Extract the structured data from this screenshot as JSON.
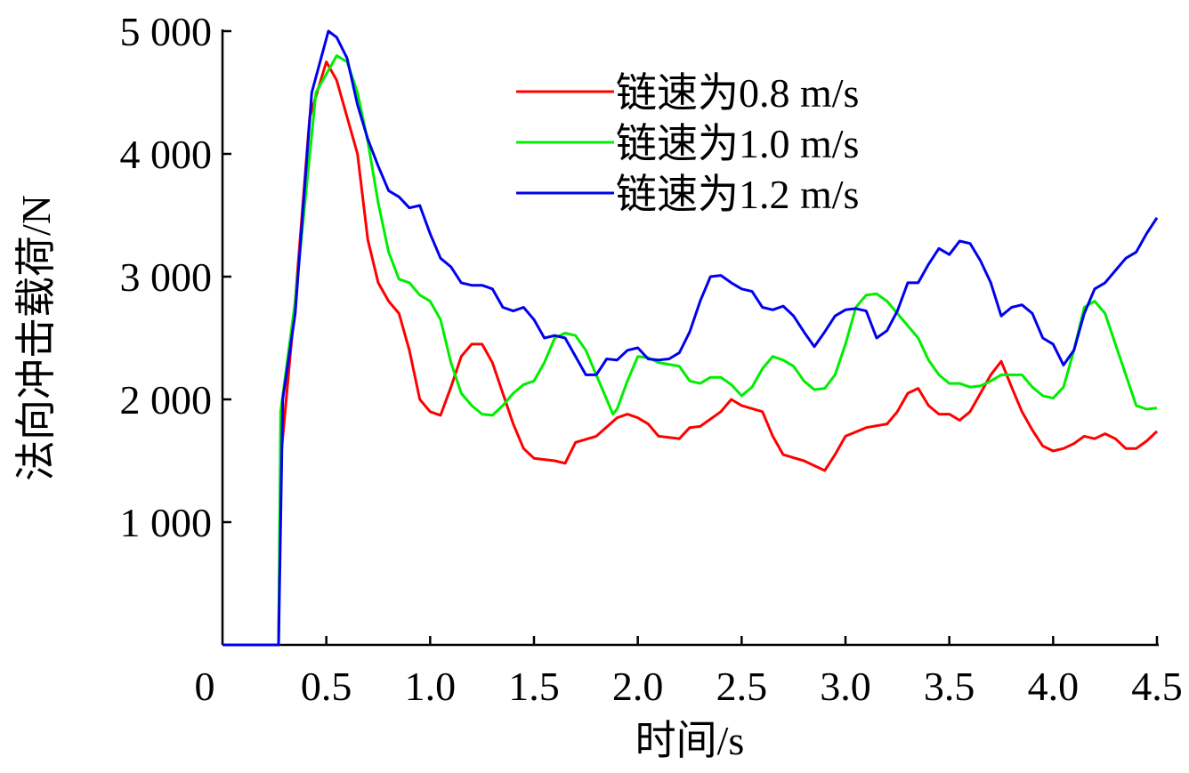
{
  "chart_data": {
    "type": "line",
    "title": "",
    "xlabel": "时间/s",
    "ylabel": "法向冲击载荷/N",
    "xlim": [
      0,
      4.5
    ],
    "ylim": [
      0,
      5000
    ],
    "x_ticks": [
      0,
      0.5,
      1.0,
      1.5,
      2.0,
      2.5,
      3.0,
      3.5,
      4.0,
      4.5
    ],
    "x_tick_labels": [
      "0",
      "0.5",
      "1.0",
      "1.5",
      "2.0",
      "2.5",
      "3.0",
      "3.5",
      "4.0",
      "4.5"
    ],
    "y_ticks": [
      1000,
      2000,
      3000,
      4000,
      5000
    ],
    "y_tick_labels": [
      "1 000",
      "2 000",
      "3 000",
      "4 000",
      "5 000"
    ],
    "grid": false,
    "legend_position": "top-right",
    "series": [
      {
        "name": "链速为0.8 m/s",
        "color": "#ff0000",
        "x": [
          0,
          0.27,
          0.28,
          0.35,
          0.42,
          0.5,
          0.55,
          0.6,
          0.65,
          0.7,
          0.75,
          0.8,
          0.85,
          0.9,
          0.95,
          1.0,
          1.05,
          1.1,
          1.15,
          1.2,
          1.25,
          1.3,
          1.35,
          1.4,
          1.45,
          1.5,
          1.6,
          1.65,
          1.7,
          1.8,
          1.9,
          1.95,
          2.0,
          2.05,
          2.1,
          2.2,
          2.25,
          2.3,
          2.4,
          2.45,
          2.5,
          2.6,
          2.65,
          2.7,
          2.8,
          2.9,
          2.95,
          3.0,
          3.1,
          3.2,
          3.25,
          3.3,
          3.35,
          3.4,
          3.45,
          3.5,
          3.55,
          3.6,
          3.65,
          3.7,
          3.75,
          3.8,
          3.85,
          3.9,
          3.95,
          4.0,
          4.05,
          4.1,
          4.15,
          4.2,
          4.25,
          4.3,
          4.35,
          4.4,
          4.45,
          4.5
        ],
        "y": [
          0,
          0,
          1500,
          2800,
          4300,
          4750,
          4600,
          4300,
          4000,
          3300,
          2950,
          2800,
          2700,
          2400,
          2000,
          1900,
          1870,
          2100,
          2350,
          2450,
          2450,
          2300,
          2050,
          1800,
          1600,
          1520,
          1500,
          1480,
          1650,
          1700,
          1850,
          1880,
          1850,
          1800,
          1700,
          1680,
          1770,
          1780,
          1900,
          2000,
          1950,
          1900,
          1700,
          1550,
          1500,
          1420,
          1550,
          1700,
          1770,
          1800,
          1900,
          2050,
          2090,
          1950,
          1880,
          1880,
          1830,
          1900,
          2050,
          2200,
          2310,
          2100,
          1900,
          1750,
          1620,
          1580,
          1600,
          1640,
          1700,
          1680,
          1720,
          1680,
          1600,
          1600,
          1660,
          1740
        ]
      },
      {
        "name": "链速为1.0 m/s",
        "color": "#00ee00",
        "x": [
          0,
          0.27,
          0.28,
          0.35,
          0.45,
          0.55,
          0.6,
          0.65,
          0.7,
          0.75,
          0.8,
          0.85,
          0.9,
          0.95,
          1.0,
          1.05,
          1.1,
          1.15,
          1.2,
          1.25,
          1.3,
          1.35,
          1.4,
          1.45,
          1.5,
          1.55,
          1.6,
          1.65,
          1.7,
          1.75,
          1.8,
          1.85,
          1.88,
          1.9,
          1.95,
          2.0,
          2.05,
          2.1,
          2.2,
          2.25,
          2.3,
          2.35,
          2.4,
          2.45,
          2.5,
          2.55,
          2.6,
          2.65,
          2.7,
          2.75,
          2.8,
          2.85,
          2.9,
          2.95,
          3.0,
          3.05,
          3.1,
          3.15,
          3.2,
          3.25,
          3.3,
          3.35,
          3.4,
          3.45,
          3.5,
          3.55,
          3.6,
          3.65,
          3.7,
          3.75,
          3.8,
          3.85,
          3.9,
          3.95,
          4.0,
          4.05,
          4.1,
          4.15,
          4.2,
          4.25,
          4.3,
          4.35,
          4.4,
          4.45,
          4.5
        ],
        "y": [
          0,
          0,
          1900,
          2800,
          4500,
          4800,
          4750,
          4500,
          4100,
          3600,
          3200,
          2980,
          2950,
          2850,
          2800,
          2650,
          2300,
          2050,
          1950,
          1880,
          1870,
          1950,
          2050,
          2120,
          2150,
          2300,
          2500,
          2540,
          2520,
          2400,
          2200,
          2000,
          1880,
          1920,
          2150,
          2350,
          2340,
          2300,
          2270,
          2150,
          2130,
          2180,
          2180,
          2120,
          2030,
          2100,
          2250,
          2350,
          2320,
          2270,
          2150,
          2080,
          2090,
          2200,
          2450,
          2750,
          2850,
          2860,
          2800,
          2700,
          2600,
          2500,
          2320,
          2200,
          2130,
          2130,
          2100,
          2110,
          2150,
          2200,
          2200,
          2200,
          2100,
          2030,
          2010,
          2100,
          2400,
          2750,
          2800,
          2700,
          2450,
          2200,
          1950,
          1920,
          1930
        ]
      },
      {
        "name": "链速为1.2 m/s",
        "color": "#0000ee",
        "x": [
          0,
          0.27,
          0.29,
          0.35,
          0.43,
          0.51,
          0.55,
          0.6,
          0.65,
          0.7,
          0.75,
          0.8,
          0.85,
          0.9,
          0.95,
          1.0,
          1.05,
          1.1,
          1.15,
          1.2,
          1.25,
          1.3,
          1.35,
          1.4,
          1.45,
          1.5,
          1.55,
          1.6,
          1.65,
          1.7,
          1.75,
          1.8,
          1.85,
          1.9,
          1.95,
          2.0,
          2.05,
          2.1,
          2.15,
          2.2,
          2.25,
          2.3,
          2.35,
          2.4,
          2.45,
          2.5,
          2.55,
          2.6,
          2.65,
          2.7,
          2.75,
          2.8,
          2.85,
          2.9,
          2.95,
          3.0,
          3.05,
          3.1,
          3.15,
          3.2,
          3.25,
          3.3,
          3.35,
          3.4,
          3.45,
          3.5,
          3.55,
          3.6,
          3.65,
          3.7,
          3.75,
          3.8,
          3.85,
          3.9,
          3.95,
          4.0,
          4.05,
          4.1,
          4.15,
          4.2,
          4.25,
          4.3,
          4.35,
          4.4,
          4.45,
          4.5
        ],
        "y": [
          0,
          0,
          2000,
          2700,
          4500,
          5000,
          4950,
          4780,
          4400,
          4120,
          3900,
          3700,
          3650,
          3560,
          3580,
          3350,
          3150,
          3080,
          2950,
          2930,
          2930,
          2900,
          2750,
          2720,
          2750,
          2650,
          2500,
          2520,
          2500,
          2350,
          2200,
          2200,
          2330,
          2320,
          2400,
          2420,
          2330,
          2320,
          2330,
          2380,
          2550,
          2800,
          3000,
          3010,
          2950,
          2900,
          2880,
          2750,
          2730,
          2760,
          2680,
          2550,
          2430,
          2550,
          2680,
          2730,
          2740,
          2720,
          2500,
          2560,
          2720,
          2950,
          2950,
          3100,
          3230,
          3180,
          3290,
          3270,
          3130,
          2950,
          2680,
          2750,
          2770,
          2700,
          2500,
          2450,
          2280,
          2400,
          2700,
          2900,
          2950,
          3050,
          3150,
          3200,
          3350,
          3480
        ]
      }
    ]
  }
}
